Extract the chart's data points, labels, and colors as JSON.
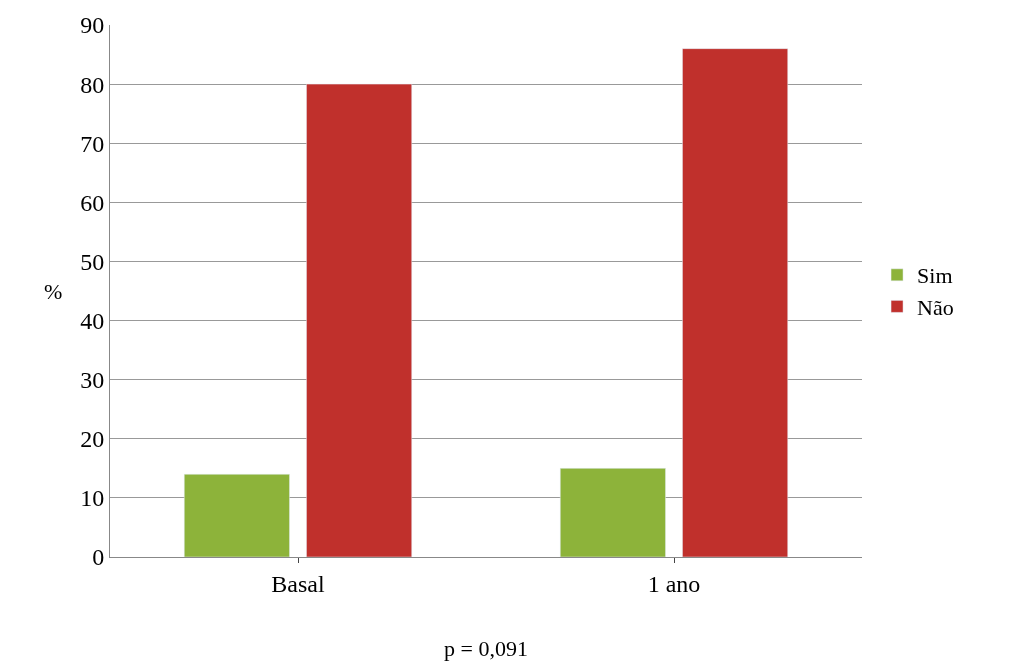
{
  "chart_data": {
    "type": "bar",
    "ylabel": "%",
    "categories": [
      "Basal",
      "1 ano"
    ],
    "series": [
      {
        "name": "Sim",
        "color": "#8db33a",
        "values": [
          14,
          15
        ]
      },
      {
        "name": "Não",
        "color": "#c0302c",
        "values": [
          80,
          86
        ]
      }
    ],
    "ylim": [
      0,
      90
    ],
    "yticks": [
      0,
      10,
      20,
      30,
      40,
      50,
      60,
      70,
      80,
      90
    ],
    "grid": "y",
    "legend": "right",
    "annotations": [
      "p = 0,091"
    ]
  }
}
